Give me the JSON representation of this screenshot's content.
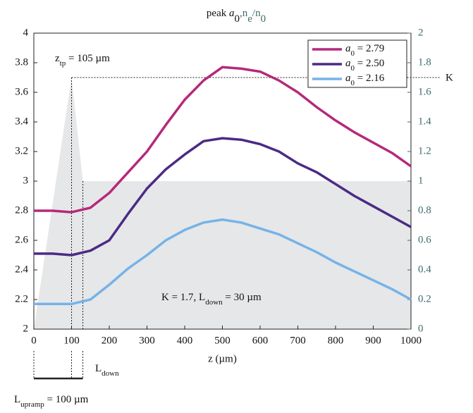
{
  "chart_data": {
    "type": "line",
    "title": [
      "peak ",
      "a",
      "0",
      ",",
      "n",
      "e",
      "/n",
      "0"
    ],
    "xlabel": "z (µm)",
    "x": [
      0,
      50,
      100,
      150,
      200,
      250,
      300,
      350,
      400,
      450,
      500,
      550,
      600,
      650,
      700,
      750,
      800,
      850,
      900,
      950,
      1000
    ],
    "series": [
      {
        "name": [
          "a",
          "0",
          " = 2.79"
        ],
        "color": "#b5297a",
        "values": [
          2.8,
          2.8,
          2.79,
          2.82,
          2.92,
          3.06,
          3.2,
          3.38,
          3.55,
          3.68,
          3.77,
          3.76,
          3.74,
          3.68,
          3.6,
          3.5,
          3.41,
          3.33,
          3.26,
          3.19,
          3.1
        ]
      },
      {
        "name": [
          "a",
          "0",
          " = 2.50"
        ],
        "color": "#4b2a86",
        "values": [
          2.51,
          2.51,
          2.5,
          2.53,
          2.6,
          2.78,
          2.95,
          3.08,
          3.18,
          3.27,
          3.29,
          3.28,
          3.25,
          3.2,
          3.12,
          3.06,
          2.98,
          2.9,
          2.83,
          2.76,
          2.69
        ]
      },
      {
        "name": [
          "a",
          "0",
          " = 2.16"
        ],
        "color": "#76b3e8",
        "values": [
          2.17,
          2.17,
          2.17,
          2.2,
          2.3,
          2.41,
          2.5,
          2.6,
          2.67,
          2.72,
          2.74,
          2.72,
          2.68,
          2.64,
          2.58,
          2.52,
          2.45,
          2.39,
          2.33,
          2.27,
          2.2
        ]
      }
    ],
    "density": {
      "axis": "y2",
      "color": "#e6e7e8",
      "x": [
        0,
        100,
        130,
        1000
      ],
      "values": [
        0,
        1.7,
        1.0,
        1.0
      ]
    },
    "xlim": [
      0,
      1000
    ],
    "xticks": [
      0,
      100,
      200,
      300,
      400,
      500,
      600,
      700,
      800,
      900,
      1000
    ],
    "ylim": [
      2,
      4
    ],
    "yticks": [
      2,
      2.2,
      2.4,
      2.6,
      2.8,
      3,
      3.2,
      3.4,
      3.6,
      3.8,
      4
    ],
    "y2lim": [
      0,
      2
    ],
    "y2ticks": [
      0,
      0.2,
      0.4,
      0.6,
      0.8,
      1,
      1.2,
      1.4,
      1.6,
      1.8,
      2
    ],
    "legend": "upper right",
    "annotations": {
      "ztp": [
        "z",
        "tp",
        " = 105 µm"
      ],
      "K": "K",
      "params": [
        "K  = 1.7, L",
        "down",
        " = 30 µm"
      ],
      "ldown": [
        "L",
        "down"
      ],
      "lupramp": [
        "L",
        "upramp",
        " = 100 µm"
      ]
    }
  }
}
